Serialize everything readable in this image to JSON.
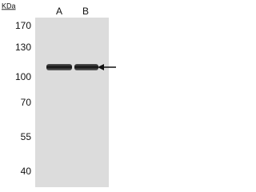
{
  "unit": "KDa",
  "lanes": [
    "A",
    "B"
  ],
  "markers": [
    "170",
    "130",
    "100",
    "70",
    "55",
    "40"
  ]
}
